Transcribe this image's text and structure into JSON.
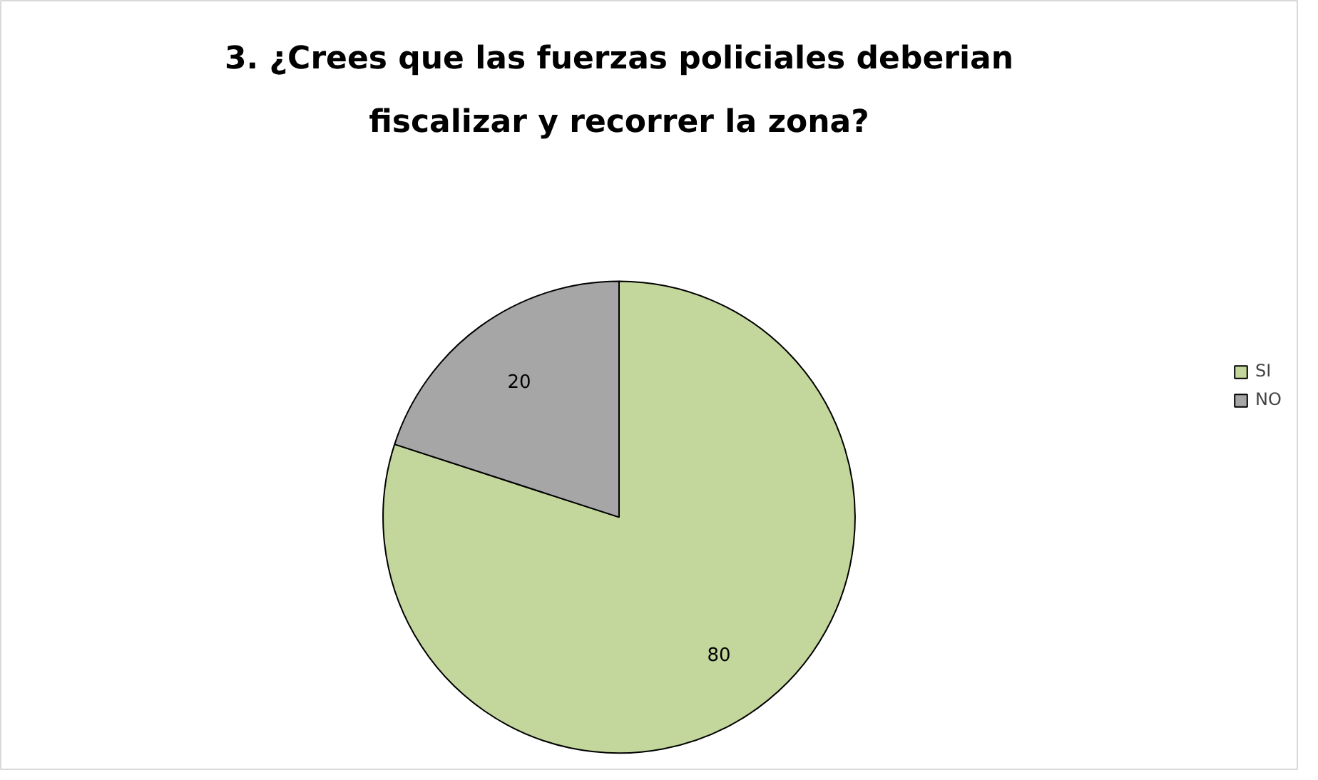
{
  "chart_data": {
    "type": "pie",
    "title": "3. ¿Crees que las fuerzas policiales deberian\nfiscalizar y recorrer la zona?",
    "categories": [
      "SI",
      "NO"
    ],
    "values": [
      80,
      20
    ],
    "colors": [
      "#c3d69b",
      "#a6a6a6"
    ],
    "data_labels": true,
    "legend": "right"
  }
}
